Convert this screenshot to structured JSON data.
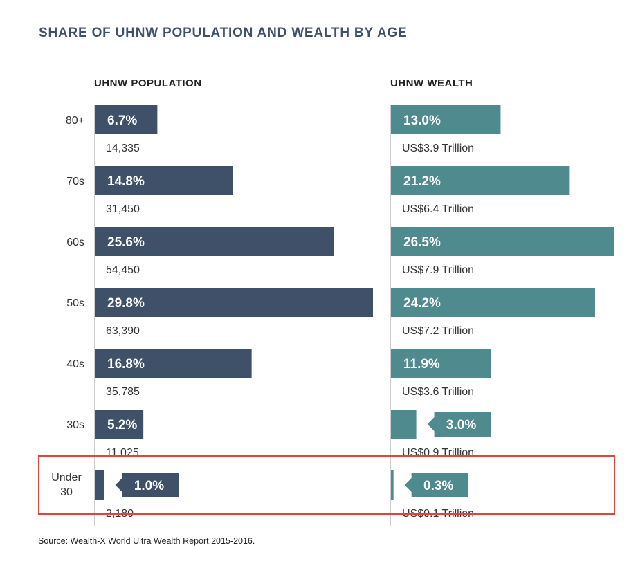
{
  "chart_data": {
    "type": "bar",
    "orientation": "horizontal",
    "title": "SHARE OF UHNW POPULATION AND WEALTH BY AGE",
    "categories": [
      "80+",
      "70s",
      "60s",
      "50s",
      "40s",
      "30s",
      "Under 30"
    ],
    "series": [
      {
        "name": "UHNW POPULATION",
        "values": [
          6.7,
          14.8,
          25.6,
          29.8,
          16.8,
          5.2,
          1.0
        ],
        "labels": [
          "6.7%",
          "14.8%",
          "25.6%",
          "29.8%",
          "16.8%",
          "5.2%",
          "1.0%"
        ],
        "sublabels": [
          "14,335",
          "31,450",
          "54,450",
          "63,390",
          "35,785",
          "11,025",
          "2,180"
        ],
        "color": "#3f5169"
      },
      {
        "name": "UHNW WEALTH",
        "values": [
          13.0,
          21.2,
          26.5,
          24.2,
          11.9,
          3.0,
          0.3
        ],
        "labels": [
          "13.0%",
          "21.2%",
          "26.5%",
          "24.2%",
          "11.9%",
          "3.0%",
          "0.3%"
        ],
        "sublabels": [
          "US$3.9 Trillion",
          "US$6.4 Trillion",
          "US$7.9 Trillion",
          "US$7.2 Trillion",
          "US$3.6 Trillion",
          "US$0.9 Trillion",
          "US$0.1 Trillion"
        ],
        "color": "#4e8a8e"
      }
    ],
    "highlight_category": "Under 30",
    "highlight_color": "#e0453c",
    "title_color": "#3f5169",
    "grid": false,
    "source": "Source: Wealth-X World Ultra Wealth Report 2015-2016."
  }
}
